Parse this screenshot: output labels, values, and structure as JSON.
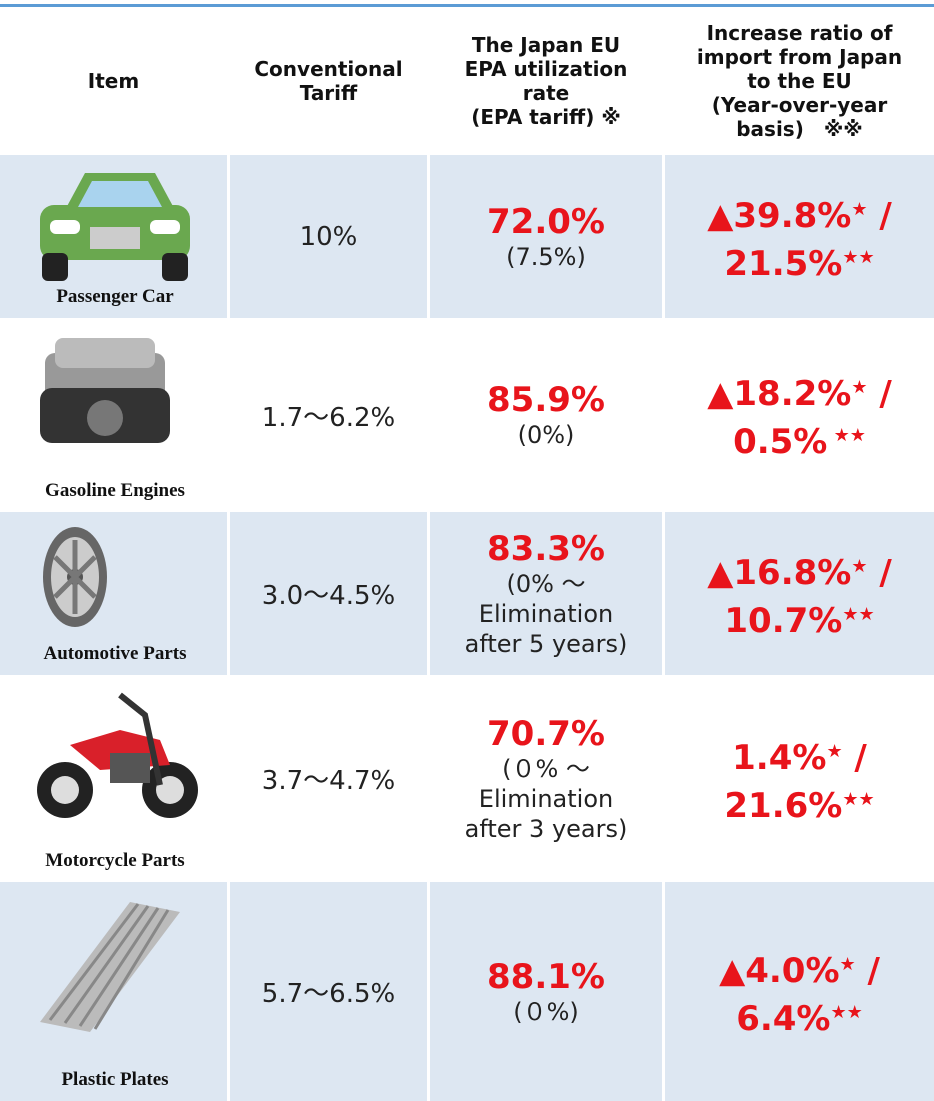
{
  "header": {
    "item": [
      "Item"
    ],
    "tariff": [
      "Conventional",
      "Tariff"
    ],
    "rate": [
      "The Japan EU",
      "EPA utilization",
      "rate",
      "(EPA tariff) ※"
    ],
    "increase": [
      "Increase ratio of",
      "import from Japan",
      "to the EU",
      "(Year-over-year",
      "basis)　※※"
    ]
  },
  "rows": [
    {
      "item": "Passenger Car",
      "tariff": "10%",
      "rate": "72.0%",
      "rate_note": [
        "(7.5%)"
      ],
      "increase": {
        "first": "▲39.8%",
        "first_mark": "★",
        "separator": " /",
        "second": "21.5%",
        "second_mark": "★★"
      }
    },
    {
      "item": "Gasoline Engines",
      "tariff": "1.7～6.2%",
      "rate": "85.9%",
      "rate_note": [
        "(0%)"
      ],
      "increase": {
        "first": "▲18.2%",
        "first_mark": "★",
        "separator": " /",
        "second": "0.5%",
        "second_mark": " ★★"
      }
    },
    {
      "item": "Automotive Parts",
      "tariff": "3.0～4.5%",
      "rate": "83.3%",
      "rate_note": [
        "(0% ～",
        "Elimination",
        "after 5 years)"
      ],
      "increase": {
        "first": "▲16.8%",
        "first_mark": "★",
        "separator": " /",
        "second": "10.7%",
        "second_mark": "★★"
      }
    },
    {
      "item": "Motorcycle Parts",
      "tariff": "3.7～4.7%",
      "rate": "70.7%",
      "rate_note": [
        "(０% ～",
        "Elimination",
        "after 3 years)"
      ],
      "increase": {
        "first": "1.4%",
        "first_mark": "★",
        "separator": " /",
        "second": "21.6%",
        "second_mark": "★★"
      }
    },
    {
      "item": "Plastic Plates",
      "tariff": "5.7～6.5%",
      "rate": "88.1%",
      "rate_note": [
        "(０%)"
      ],
      "increase": {
        "first": "▲4.0%",
        "first_mark": "★",
        "separator": " /",
        "second": "6.4%",
        "second_mark": "★★"
      }
    }
  ]
}
